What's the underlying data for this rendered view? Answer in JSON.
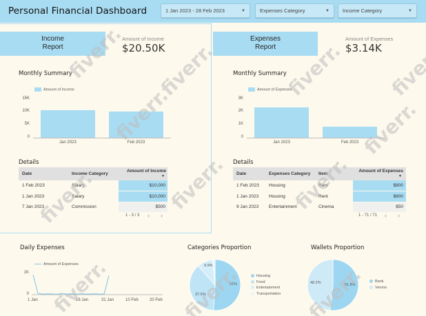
{
  "header": {
    "title": "Personal Financial Dashboard",
    "date_range": "1 Jan 2023 - 28 Feb 2023",
    "expenses_category": "Expenses Category",
    "income_category": "Income Category"
  },
  "income": {
    "report_line1": "Income",
    "report_line2": "Report",
    "amount_label": "Amount of Income",
    "amount_value": "$20.50K",
    "summary_title": "Monthly Summary",
    "legend": "Amount of Income",
    "details_title": "Details",
    "columns": [
      "Date",
      "Income Category",
      "Amount of Income"
    ],
    "rows": [
      [
        "1 Feb 2023",
        "Salary",
        "$10,000"
      ],
      [
        "1 Jan 2023",
        "Salary",
        "$10,000"
      ],
      [
        "7 Jan 2023",
        "Commission",
        "$500"
      ]
    ],
    "pager": "1 - 3 / 3"
  },
  "expenses": {
    "report_line1": "Expenses",
    "report_line2": "Report",
    "amount_label": "Amount of Expenses",
    "amount_value": "$3.14K",
    "summary_title": "Monthly Summary",
    "legend": "Amount of Expenses",
    "details_title": "Details",
    "columns": [
      "Date",
      "Expenses Category",
      "Item",
      "Amount of Expenses"
    ],
    "rows": [
      [
        "1 Feb 2023",
        "Housing",
        "Rent",
        "$800"
      ],
      [
        "1 Jan 2023",
        "Housing",
        "Rent",
        "$800"
      ],
      [
        "9 Jan 2023",
        "Entertainment",
        "Cinema",
        "$50"
      ]
    ],
    "pager": "1 - 71 / 71"
  },
  "daily": {
    "title": "Daily Expenses",
    "legend": "Amount of Expenses"
  },
  "categories": {
    "title": "Categories Proportion",
    "legend": [
      "Housing",
      "Food",
      "Entertainment",
      "Transportation"
    ],
    "labels": [
      "51%",
      "37.5%",
      "9.9%"
    ]
  },
  "wallets": {
    "title": "Wallets Proportion",
    "legend": [
      "Bank",
      "Venmo"
    ],
    "labels": [
      "51.8%",
      "48.2%"
    ]
  },
  "watermark": "fiverr.",
  "chart_data": [
    {
      "type": "bar",
      "categories": [
        "Jan 2023",
        "Feb 2023"
      ],
      "series": [
        {
          "name": "Amount of Income",
          "values": [
            10500,
            10000
          ]
        }
      ],
      "yticks": [
        "0",
        "5K",
        "10K",
        "15K"
      ],
      "ylim": [
        0,
        15000
      ]
    },
    {
      "type": "bar",
      "categories": [
        "Jan 2023",
        "Feb 2023"
      ],
      "series": [
        {
          "name": "Amount of Expenses",
          "values": [
            2300,
            840
          ]
        }
      ],
      "yticks": [
        "0",
        "1K",
        "2K",
        "3K"
      ],
      "ylim": [
        0,
        3000
      ]
    },
    {
      "type": "line",
      "x": [
        "1 Jan",
        "2 Jan",
        "4 Jan",
        "6 Jan",
        "8 Jan",
        "10 Jan",
        "12 Jan",
        "14 Jan",
        "16 Jan",
        "18 Jan",
        "20 Jan",
        "22 Jan",
        "24 Jan",
        "26 Jan",
        "28 Jan",
        "30 Jan",
        "31 Jan"
      ],
      "series": [
        {
          "name": "Amount of Expenses",
          "values": [
            850,
            60,
            20,
            40,
            30,
            15,
            50,
            25,
            35,
            20,
            45,
            30,
            25,
            40,
            20,
            30,
            820
          ]
        }
      ],
      "xticks": [
        "1 Jan",
        "16 Jan",
        "31 Jan",
        "10 Feb",
        "20 Feb"
      ],
      "yticks": [
        "0",
        "1K"
      ],
      "ylim": [
        0,
        1000
      ]
    },
    {
      "type": "pie",
      "categories": [
        "Housing",
        "Food",
        "Entertainment",
        "Transportation"
      ],
      "values": [
        51,
        37.5,
        9.9,
        1.6
      ]
    },
    {
      "type": "pie",
      "categories": [
        "Bank",
        "Venmo"
      ],
      "values": [
        51.8,
        48.2
      ]
    }
  ],
  "colors": {
    "accent": "#a8dcf2",
    "pie": [
      "#9dd6f0",
      "#bfe4f5",
      "#d6eef9",
      "#e9f6fc"
    ]
  }
}
